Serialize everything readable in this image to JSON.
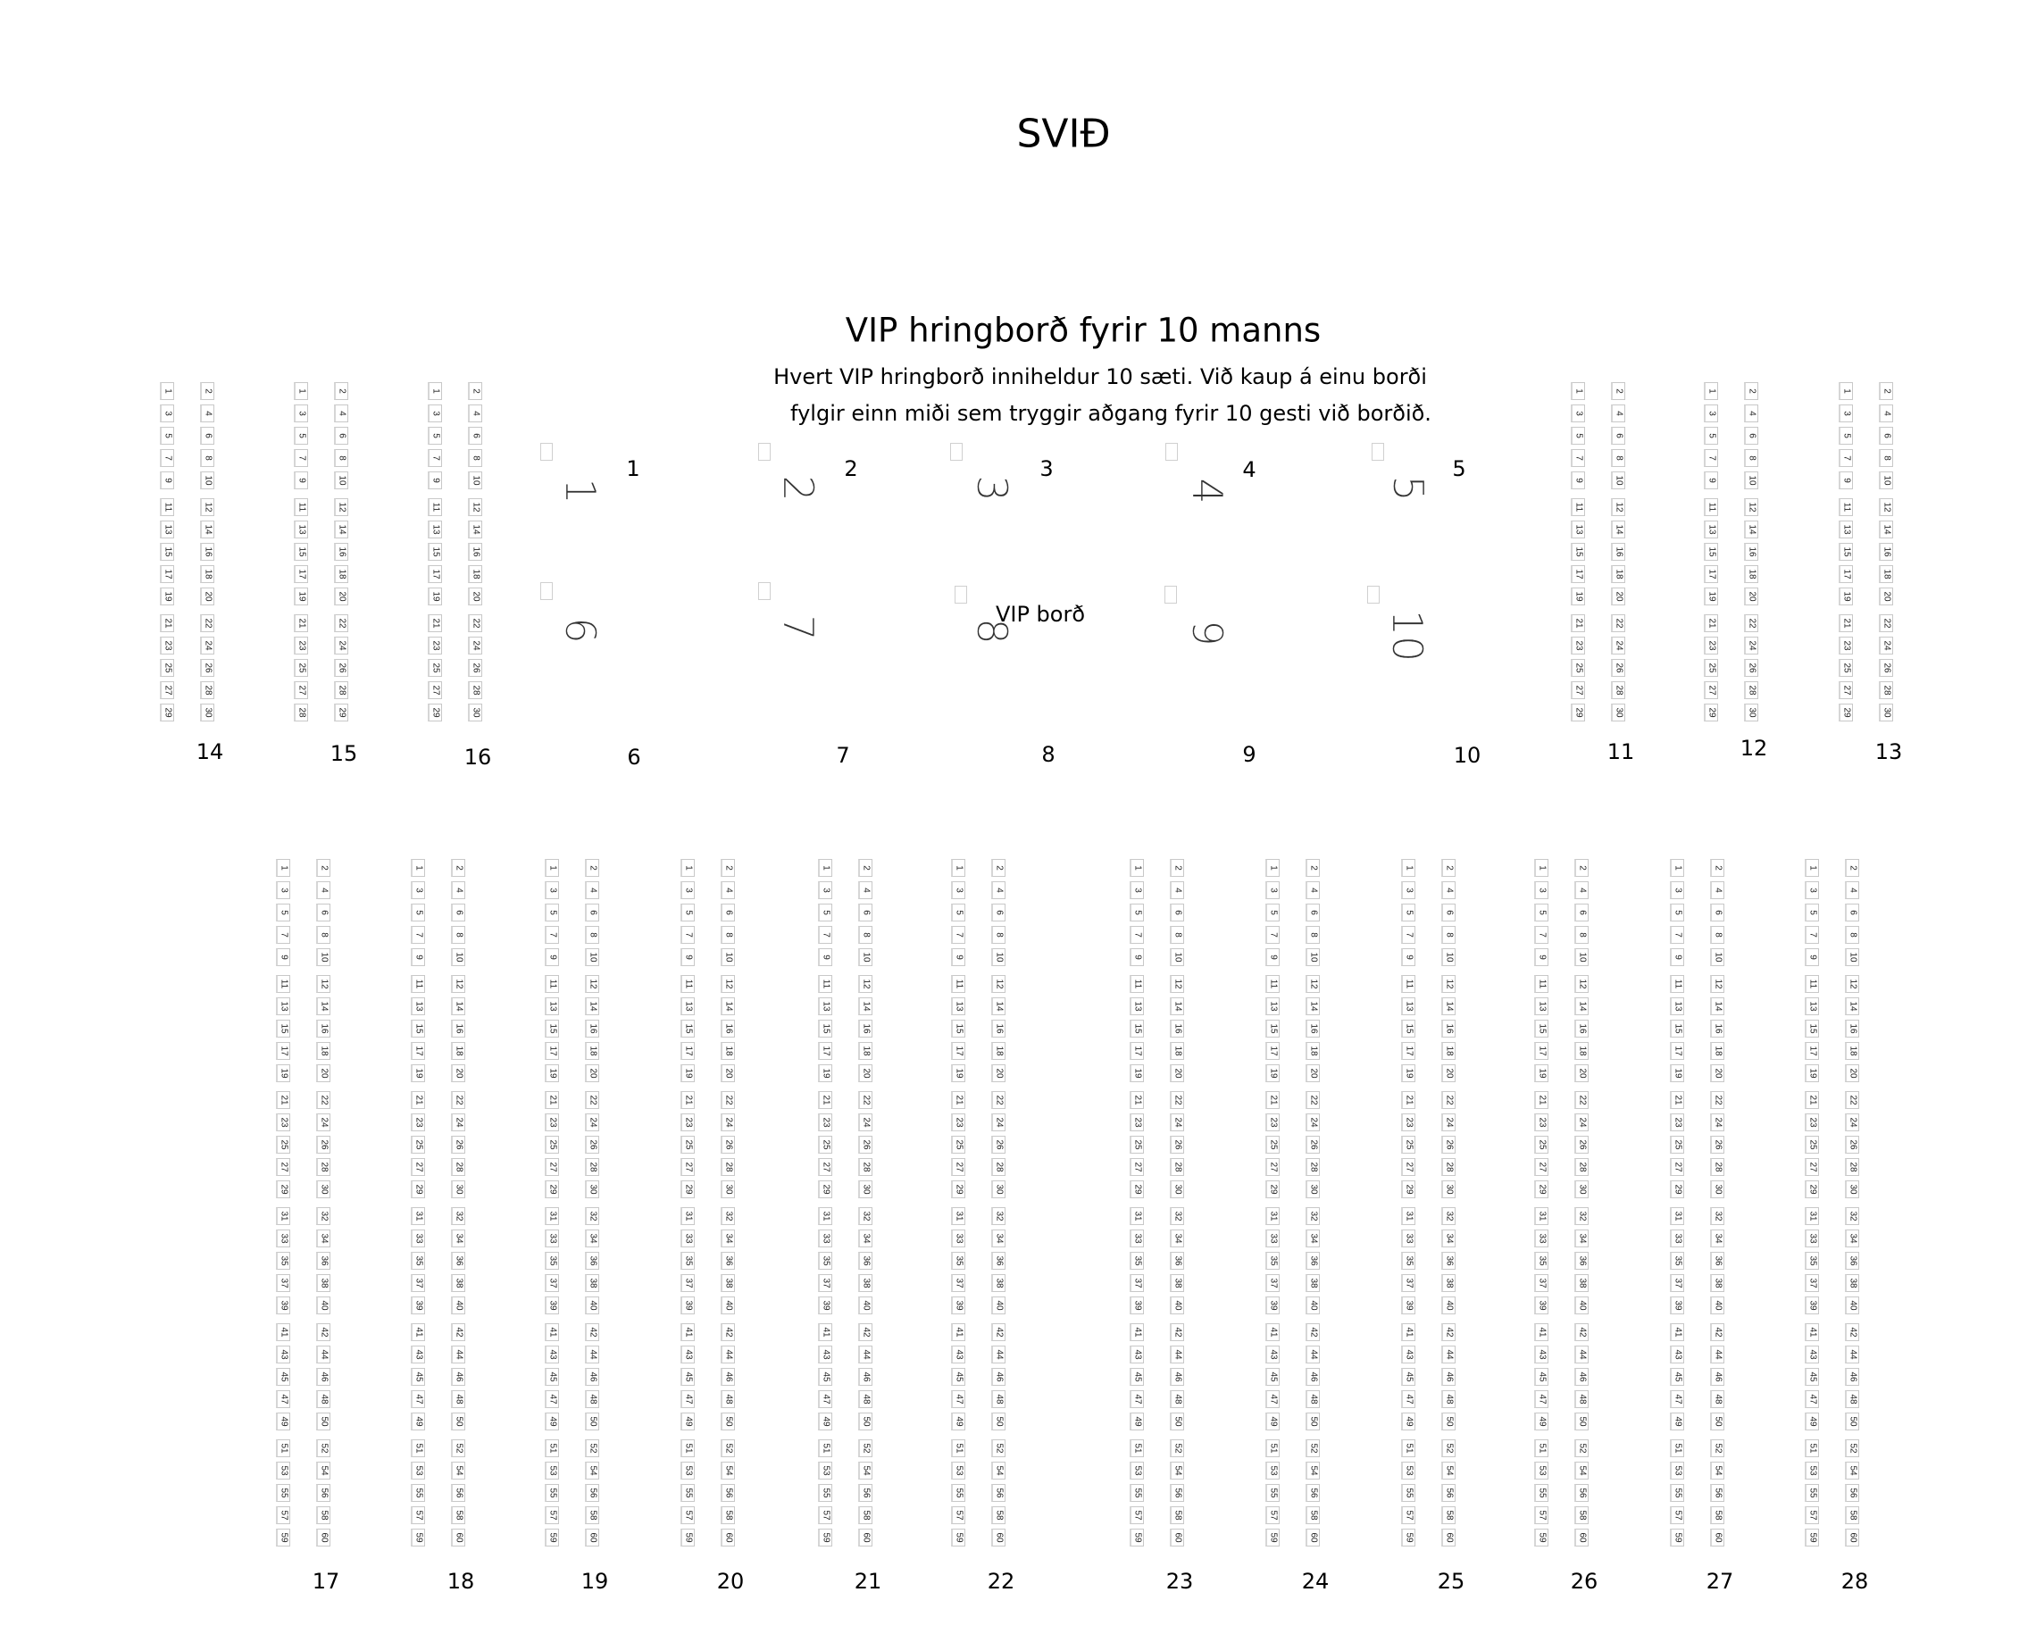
{
  "stage_label": "SVIÐ",
  "vip_section": {
    "title": "VIP hringborð fyrir 10 manns",
    "description_line1": "Hvert VIP hringborð inniheldur 10 sæti. Við kaup á einu borði",
    "description_line2": "fylgir einn miði sem tryggir aðgang fyrir 10 gesti við borðið.",
    "center_label": "VIP borð",
    "tables": [
      {
        "number": "1",
        "seat_label": "1"
      },
      {
        "number": "2",
        "seat_label": "2"
      },
      {
        "number": "3",
        "seat_label": "3"
      },
      {
        "number": "4",
        "seat_label": "4"
      },
      {
        "number": "5",
        "seat_label": "5"
      },
      {
        "number": "6",
        "seat_label": "6"
      },
      {
        "number": "7",
        "seat_label": "7"
      },
      {
        "number": "8",
        "seat_label": "8"
      },
      {
        "number": "9",
        "seat_label": "9"
      },
      {
        "number": "10",
        "seat_label": "10"
      }
    ]
  },
  "seat_layouts": {
    "standard_30": [
      1,
      2,
      3,
      4,
      5,
      6,
      7,
      8,
      9,
      10,
      11,
      12,
      13,
      14,
      15,
      16,
      17,
      18,
      19,
      20,
      21,
      22,
      23,
      24,
      25,
      26,
      27,
      28,
      29,
      30
    ],
    "block_15": [
      1,
      2,
      3,
      4,
      5,
      6,
      7,
      8,
      9,
      10,
      11,
      12,
      13,
      14,
      15,
      16,
      17,
      18,
      19,
      20,
      21,
      22,
      23,
      24,
      25,
      26,
      27,
      28,
      28,
      29
    ],
    "standard_60": [
      1,
      2,
      3,
      4,
      5,
      6,
      7,
      8,
      9,
      10,
      11,
      12,
      13,
      14,
      15,
      16,
      17,
      18,
      19,
      20,
      21,
      22,
      23,
      24,
      25,
      26,
      27,
      28,
      29,
      30,
      31,
      32,
      33,
      34,
      35,
      36,
      37,
      38,
      39,
      40,
      41,
      42,
      43,
      44,
      45,
      46,
      47,
      48,
      49,
      50,
      51,
      52,
      53,
      54,
      55,
      56,
      57,
      58,
      59,
      60
    ]
  },
  "upper_blocks": [
    {
      "label": "14",
      "layout": "standard_30"
    },
    {
      "label": "15",
      "layout": "block_15"
    },
    {
      "label": "16",
      "layout": "standard_30"
    },
    {
      "label": "11",
      "layout": "standard_30"
    },
    {
      "label": "12",
      "layout": "standard_30"
    },
    {
      "label": "13",
      "layout": "standard_30"
    }
  ],
  "lower_blocks": [
    {
      "label": "17",
      "layout": "standard_60"
    },
    {
      "label": "18",
      "layout": "standard_60"
    },
    {
      "label": "19",
      "layout": "standard_60"
    },
    {
      "label": "20",
      "layout": "standard_60"
    },
    {
      "label": "21",
      "layout": "standard_60"
    },
    {
      "label": "22",
      "layout": "standard_60"
    },
    {
      "label": "23",
      "layout": "standard_60"
    },
    {
      "label": "24",
      "layout": "standard_60"
    },
    {
      "label": "25",
      "layout": "standard_60"
    },
    {
      "label": "26",
      "layout": "standard_60"
    },
    {
      "label": "27",
      "layout": "standard_60"
    },
    {
      "label": "28",
      "layout": "standard_60"
    }
  ]
}
